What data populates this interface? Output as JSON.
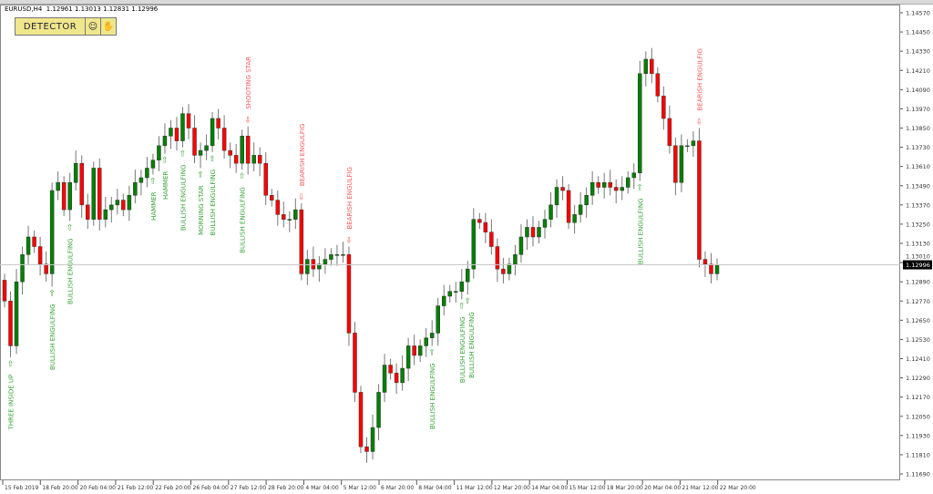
{
  "header": {
    "symbol": "EURUSD,H4",
    "ohlc": "1.12961 1.13013 1.12831 1.12996"
  },
  "detector_panel": {
    "label": "DETECTOR",
    "icons": [
      "smiley-icon",
      "hand-icon"
    ],
    "color": "#f0e68c"
  },
  "chart_data": {
    "type": "candlestick",
    "symbol": "EURUSD",
    "timeframe": "H4",
    "colors": {
      "bull": "#008000",
      "bear": "#ff0000",
      "bullish_label": "#3aa53a",
      "bearish_label": "#ff5a5a"
    },
    "ylim": [
      1.1165,
      1.1462
    ],
    "grid": false,
    "first_open": 1.129,
    "closes": [
      1.1277,
      1.1249,
      1.1289,
      1.1306,
      1.1317,
      1.1311,
      1.13,
      1.1294,
      1.1346,
      1.1351,
      1.1334,
      1.1351,
      1.1363,
      1.1337,
      1.1328,
      1.136,
      1.1328,
      1.1334,
      1.1337,
      1.134,
      1.1334,
      1.1343,
      1.1351,
      1.1354,
      1.136,
      1.1365,
      1.1374,
      1.138,
      1.1385,
      1.1377,
      1.1394,
      1.1385,
      1.1368,
      1.1371,
      1.1374,
      1.1391,
      1.1385,
      1.1371,
      1.1368,
      1.1363,
      1.138,
      1.1363,
      1.1368,
      1.1363,
      1.1343,
      1.134,
      1.1331,
      1.1328,
      1.1328,
      1.1334,
      1.1294,
      1.1303,
      1.1297,
      1.13,
      1.1303,
      1.1306,
      1.1306,
      1.1306,
      1.1257,
      1.122,
      1.1186,
      1.1183,
      1.1198,
      1.122,
      1.1237,
      1.1232,
      1.1226,
      1.1235,
      1.1249,
      1.1243,
      1.1249,
      1.1254,
      1.1257,
      1.1274,
      1.128,
      1.1283,
      1.1283,
      1.1289,
      1.1297,
      1.1328,
      1.1326,
      1.132,
      1.1311,
      1.1297,
      1.1294,
      1.13,
      1.1306,
      1.1317,
      1.1323,
      1.1317,
      1.1323,
      1.1328,
      1.1337,
      1.1348,
      1.1346,
      1.1326,
      1.1331,
      1.1337,
      1.1343,
      1.1351,
      1.1348,
      1.1351,
      1.1348,
      1.1346,
      1.1348,
      1.1354,
      1.1357,
      1.1419,
      1.1428,
      1.1419,
      1.1405,
      1.1391,
      1.1374,
      1.1351,
      1.1374,
      1.1374,
      1.1377,
      1.1303,
      1.13,
      1.1294,
      1.12996
    ],
    "patterns": [
      {
        "candle": 1,
        "label": "THREE INSIDE UP",
        "type": "bullish"
      },
      {
        "candle": 8,
        "label": "BULLISH ENGULFING",
        "type": "bullish"
      },
      {
        "candle": 11,
        "label": "BULLISH ENGULFING",
        "type": "bullish"
      },
      {
        "candle": 25,
        "label": "HAMMER",
        "type": "bullish"
      },
      {
        "candle": 27,
        "label": "HAMMER",
        "type": "bullish"
      },
      {
        "candle": 30,
        "label": "BULLISH ENGULFING",
        "type": "bullish"
      },
      {
        "candle": 33,
        "label": "MORNING STAR",
        "type": "bullish"
      },
      {
        "candle": 35,
        "label": "BULLISH ENGULFING",
        "type": "bullish"
      },
      {
        "candle": 40,
        "label": "BULLISH ENGULFING",
        "type": "bullish"
      },
      {
        "candle": 41,
        "label": "SHOOTING STAR",
        "type": "bearish"
      },
      {
        "candle": 50,
        "label": "BEARISH ENGULFIG",
        "type": "bearish"
      },
      {
        "candle": 58,
        "label": "BEARISH ENGULFIG",
        "type": "bearish"
      },
      {
        "candle": 72,
        "label": "BULLISH ENGULFING",
        "type": "bullish"
      },
      {
        "candle": 77,
        "label": "BULLISH ENGULFING",
        "type": "bullish"
      },
      {
        "candle": 78,
        "label": "BULLISH ENGULFING",
        "type": "bullish"
      },
      {
        "candle": 107,
        "label": "BULLISH ENGULFING",
        "type": "bullish"
      },
      {
        "candle": 117,
        "label": "BEARISH ENGULFIG",
        "type": "bearish"
      }
    ],
    "price_ticks": [
      "1.14570",
      "1.14450",
      "1.14330",
      "1.14210",
      "1.14090",
      "1.13970",
      "1.13850",
      "1.13730",
      "1.13610",
      "1.13490",
      "1.13370",
      "1.13250",
      "1.13130",
      "1.13010",
      "1.12890",
      "1.12770",
      "1.12650",
      "1.12530",
      "1.12410",
      "1.12290",
      "1.12170",
      "1.12050",
      "1.11930",
      "1.11810",
      "1.11690"
    ],
    "current_price": "1.12996",
    "time_ticks": [
      "15 Feb 2019",
      "18 Feb 20:00",
      "20 Feb 04:00",
      "21 Feb 12:00",
      "22 Feb 20:00",
      "26 Feb 04:00",
      "27 Feb 12:00",
      "28 Feb 20:00",
      "4 Mar 04:00",
      "5 Mar 12:00",
      "6 Mar 20:00",
      "8 Mar 04:00",
      "11 Mar 12:00",
      "12 Mar 20:00",
      "14 Mar 04:00",
      "15 Mar 12:00",
      "18 Mar 20:00",
      "20 Mar 04:00",
      "21 Mar 12:00",
      "22 Mar 20:00"
    ]
  }
}
